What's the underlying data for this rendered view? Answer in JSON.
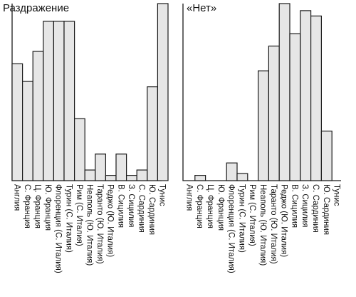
{
  "chart_data": [
    {
      "type": "bar",
      "title": "Раздражение",
      "xlabel": "",
      "ylabel": "",
      "ylim": [
        0,
        100
      ],
      "grid": false,
      "categories": [
        "Англия",
        "С. Франция",
        "Ц. Франция",
        "Ю. Франция",
        "Флоренция (С. Италия)",
        "Турин (С. Италия)",
        "Рим (С. Италия)",
        "Неаполь (Ю. Италия)",
        "Таранто (Ю. Италия)",
        "Реджо (Ю. Италия)",
        "В. Сицилия",
        "З. Сицилия",
        "С. Сардиния",
        "Ю. Сардиния",
        "Тунис"
      ],
      "values": [
        66,
        56,
        73,
        90,
        90,
        90,
        35,
        6,
        15,
        3,
        15,
        3,
        6,
        53,
        100
      ]
    },
    {
      "type": "bar",
      "title": "«Нет»",
      "xlabel": "",
      "ylabel": "",
      "ylim": [
        0,
        100
      ],
      "grid": false,
      "categories": [
        "Англия",
        "С. Франция",
        "Ц. Франция",
        "Ю. Франция",
        "Флоренция (С. Италия)",
        "Турин (С. Италия)",
        "Рим (С. Италия)",
        "Неаполь (Ю. Италия)",
        "Таранто (Ю. Италия)",
        "Реджо (Ю. Италия)",
        "В. Сицилия",
        "З. Сицилия",
        "С. Сардиния",
        "Ю. Сардиния",
        "Тунис"
      ],
      "values": [
        0,
        3,
        0,
        0,
        10,
        4,
        0,
        62,
        76,
        100,
        83,
        96,
        93,
        28,
        0
      ]
    }
  ]
}
